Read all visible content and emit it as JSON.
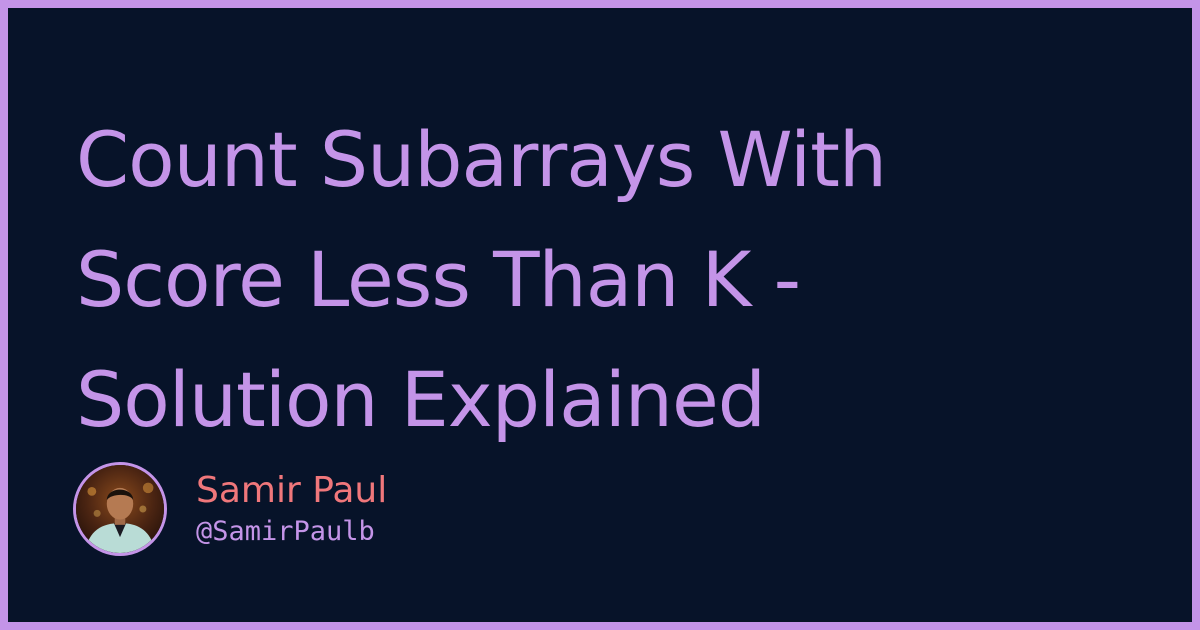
{
  "title_lines": [
    "Count Subarrays With",
    "Score Less Than K -",
    "Solution Explained"
  ],
  "author": {
    "name": "Samir Paul",
    "handle": "@SamirPaulb",
    "avatar_icon": "person-portrait-icon"
  },
  "colors": {
    "background": "#071329",
    "accent": "#c494e8",
    "author_name": "#f0777b"
  }
}
